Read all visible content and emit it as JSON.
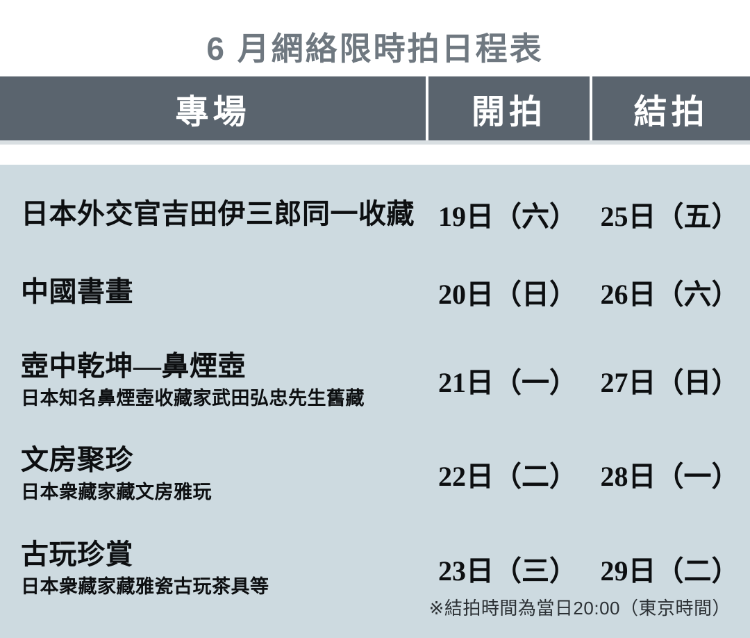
{
  "page": {
    "title": "6 月網絡限時拍日程表"
  },
  "colors": {
    "header_bg": "#5a646e",
    "panel_bg": "#cddae0",
    "title_text": "#6f7880",
    "header_text": "#ffffff",
    "body_text": "#0d0f11",
    "footnote_text": "#2b3034"
  },
  "table": {
    "columns": [
      {
        "label": "專場"
      },
      {
        "label": "開拍"
      },
      {
        "label": "結拍"
      }
    ],
    "rows": [
      {
        "session": "日本外交官吉田伊三郎同一收藏",
        "note": "",
        "start": "19日（六）",
        "end": "25日（五）"
      },
      {
        "session": "中國書畫",
        "note": "",
        "start": "20日（日）",
        "end": "26日（六）"
      },
      {
        "session": "壺中乾坤—鼻煙壺",
        "note": "日本知名鼻煙壺收藏家武田弘忠先生舊藏",
        "start": "21日（一）",
        "end": "27日（日）"
      },
      {
        "session": "文房聚珍",
        "note": "日本衆藏家藏文房雅玩",
        "start": "22日（二）",
        "end": "28日（一）"
      },
      {
        "session": "古玩珍賞",
        "note": "日本衆藏家藏雅瓷古玩茶具等",
        "start": "23日（三）",
        "end": "29日（二）"
      }
    ],
    "footnote": "※結拍時間為當日20:00（東京時間）"
  }
}
